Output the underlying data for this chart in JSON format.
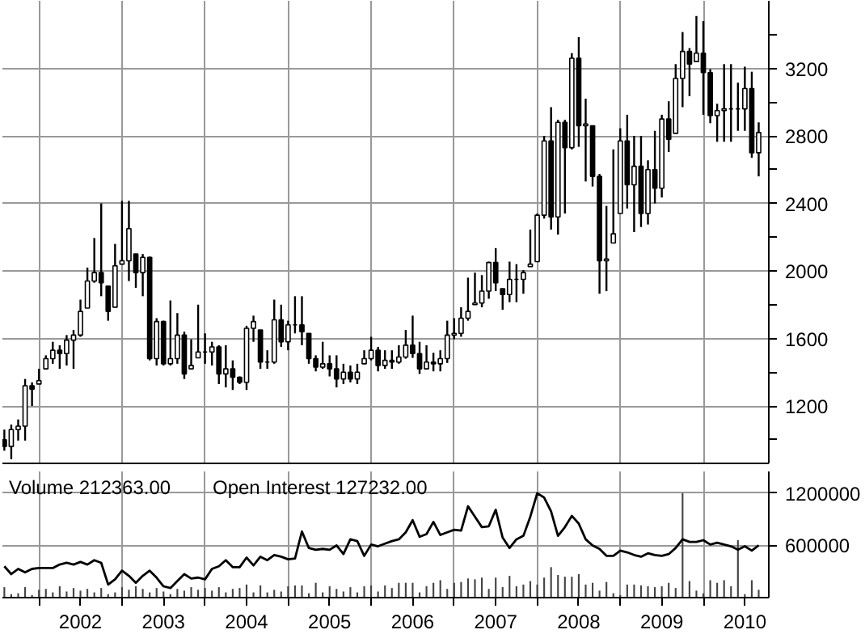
{
  "chart_data": [
    {
      "type": "candlestick",
      "color": "#000000",
      "x": [
        "2001-08",
        "2001-09",
        "2001-10",
        "2001-11",
        "2001-12",
        "2002-01",
        "2002-02",
        "2002-03",
        "2002-04",
        "2002-05",
        "2002-06",
        "2002-07",
        "2002-08",
        "2002-09",
        "2002-10",
        "2002-11",
        "2002-12",
        "2003-01",
        "2003-02",
        "2003-03",
        "2003-04",
        "2003-05",
        "2003-06",
        "2003-07",
        "2003-08",
        "2003-09",
        "2003-10",
        "2003-11",
        "2003-12",
        "2004-01",
        "2004-02",
        "2004-03",
        "2004-04",
        "2004-05",
        "2004-06",
        "2004-07",
        "2004-08",
        "2004-09",
        "2004-10",
        "2004-11",
        "2004-12",
        "2005-01",
        "2005-02",
        "2005-03",
        "2005-04",
        "2005-05",
        "2005-06",
        "2005-07",
        "2005-08",
        "2005-09",
        "2005-10",
        "2005-11",
        "2005-12",
        "2006-01",
        "2006-02",
        "2006-03",
        "2006-04",
        "2006-05",
        "2006-06",
        "2006-07",
        "2006-08",
        "2006-09",
        "2006-10",
        "2006-11",
        "2006-12",
        "2007-01",
        "2007-02",
        "2007-03",
        "2007-04",
        "2007-05",
        "2007-06",
        "2007-07",
        "2007-08",
        "2007-09",
        "2007-10",
        "2007-11",
        "2007-12",
        "2008-01",
        "2008-02",
        "2008-03",
        "2008-04",
        "2008-05",
        "2008-06",
        "2008-07",
        "2008-08",
        "2008-09",
        "2008-10",
        "2008-11",
        "2008-12",
        "2009-01",
        "2009-02",
        "2009-03",
        "2009-04",
        "2009-05",
        "2009-06",
        "2009-07",
        "2009-08",
        "2009-09",
        "2009-10",
        "2009-11",
        "2009-12",
        "2010-01",
        "2010-02",
        "2010-03",
        "2010-04",
        "2010-05",
        "2010-06",
        "2010-07",
        "2010-08",
        "2010-09"
      ],
      "ohlc": [
        [
          1000,
          1060,
          935,
          960
        ],
        [
          960,
          1090,
          885,
          1060
        ],
        [
          1060,
          1120,
          995,
          1080
        ],
        [
          1080,
          1360,
          995,
          1320
        ],
        [
          1320,
          1340,
          1200,
          1300
        ],
        [
          1330,
          1420,
          1330,
          1350
        ],
        [
          1420,
          1500,
          1420,
          1480
        ],
        [
          1480,
          1580,
          1450,
          1530
        ],
        [
          1530,
          1560,
          1420,
          1510
        ],
        [
          1510,
          1620,
          1440,
          1590
        ],
        [
          1590,
          1650,
          1420,
          1620
        ],
        [
          1620,
          1830,
          1610,
          1760
        ],
        [
          1780,
          2020,
          1780,
          1940
        ],
        [
          1940,
          2195,
          1930,
          1990
        ],
        [
          1990,
          2400,
          1850,
          1930
        ],
        [
          1910,
          1910,
          1705,
          1760
        ],
        [
          1785,
          2160,
          1785,
          2030
        ],
        [
          2040,
          2415,
          2040,
          2060
        ],
        [
          2060,
          2415,
          1940,
          2250
        ],
        [
          2100,
          2100,
          1900,
          1990
        ],
        [
          1990,
          2100,
          1850,
          2080
        ],
        [
          2080,
          2085,
          1470,
          1480
        ],
        [
          1480,
          1720,
          1440,
          1700
        ],
        [
          1700,
          1705,
          1440,
          1450
        ],
        [
          1450,
          1825,
          1440,
          1480
        ],
        [
          1480,
          1750,
          1450,
          1620
        ],
        [
          1620,
          1640,
          1360,
          1390
        ],
        [
          1420,
          1595,
          1420,
          1440
        ],
        [
          1485,
          1800,
          1485,
          1520
        ],
        [
          1520,
          1630,
          1450,
          1520
        ],
        [
          1520,
          1580,
          1440,
          1550
        ],
        [
          1550,
          1560,
          1330,
          1390
        ],
        [
          1390,
          1560,
          1310,
          1420
        ],
        [
          1420,
          1470,
          1295,
          1370
        ],
        [
          1370,
          1375,
          1330,
          1340
        ],
        [
          1340,
          1675,
          1295,
          1660
        ],
        [
          1660,
          1735,
          1580,
          1700
        ],
        [
          1650,
          1650,
          1420,
          1460
        ],
        [
          1460,
          1530,
          1420,
          1460
        ],
        [
          1460,
          1830,
          1450,
          1710
        ],
        [
          1710,
          1800,
          1550,
          1580
        ],
        [
          1580,
          1705,
          1530,
          1680
        ],
        [
          1680,
          1850,
          1630,
          1680
        ],
        [
          1680,
          1850,
          1560,
          1640
        ],
        [
          1630,
          1630,
          1450,
          1480
        ],
        [
          1480,
          1500,
          1405,
          1430
        ],
        [
          1430,
          1580,
          1420,
          1450
        ],
        [
          1450,
          1500,
          1375,
          1420
        ],
        [
          1420,
          1500,
          1310,
          1360
        ],
        [
          1360,
          1450,
          1330,
          1400
        ],
        [
          1400,
          1440,
          1340,
          1360
        ],
        [
          1360,
          1450,
          1330,
          1400
        ],
        [
          1450,
          1530,
          1450,
          1480
        ],
        [
          1480,
          1610,
          1470,
          1530
        ],
        [
          1530,
          1550,
          1405,
          1440
        ],
        [
          1440,
          1530,
          1420,
          1470
        ],
        [
          1470,
          1530,
          1420,
          1460
        ],
        [
          1460,
          1560,
          1450,
          1490
        ],
        [
          1490,
          1650,
          1480,
          1560
        ],
        [
          1560,
          1735,
          1485,
          1510
        ],
        [
          1510,
          1580,
          1390,
          1420
        ],
        [
          1420,
          1560,
          1420,
          1460
        ],
        [
          1460,
          1515,
          1405,
          1450
        ],
        [
          1450,
          1530,
          1405,
          1480
        ],
        [
          1480,
          1705,
          1455,
          1620
        ],
        [
          1620,
          1720,
          1595,
          1630
        ],
        [
          1630,
          1785,
          1610,
          1720
        ],
        [
          1720,
          1960,
          1705,
          1760
        ],
        [
          1800,
          1990,
          1800,
          1810
        ],
        [
          1810,
          1975,
          1785,
          1880
        ],
        [
          1880,
          2055,
          1835,
          2050
        ],
        [
          2050,
          2135,
          1880,
          1930
        ],
        [
          1895,
          1895,
          1770,
          1860
        ],
        [
          1860,
          2055,
          1815,
          1950
        ],
        [
          1950,
          2040,
          1815,
          1950
        ],
        [
          1950,
          2005,
          1865,
          1990
        ],
        [
          2025,
          2245,
          2025,
          2040
        ],
        [
          2055,
          2340,
          2055,
          2330
        ],
        [
          2330,
          2800,
          2310,
          2770
        ],
        [
          2770,
          2970,
          2245,
          2320
        ],
        [
          2320,
          2895,
          2215,
          2880
        ],
        [
          2880,
          2895,
          2340,
          2730
        ],
        [
          2730,
          3290,
          2720,
          3260
        ],
        [
          3260,
          3385,
          2735,
          2860
        ],
        [
          2860,
          3020,
          2530,
          2870
        ],
        [
          2860,
          2860,
          2500,
          2560
        ],
        [
          2560,
          2575,
          1865,
          2060
        ],
        [
          2060,
          2385,
          1880,
          2070
        ],
        [
          2165,
          2720,
          2165,
          2220
        ],
        [
          2340,
          2845,
          2340,
          2770
        ],
        [
          2770,
          2925,
          2370,
          2510
        ],
        [
          2510,
          2800,
          2230,
          2620
        ],
        [
          2620,
          2800,
          2260,
          2340
        ],
        [
          2340,
          2655,
          2275,
          2600
        ],
        [
          2600,
          2830,
          2400,
          2490
        ],
        [
          2490,
          2925,
          2435,
          2900
        ],
        [
          2900,
          3005,
          2705,
          2780
        ],
        [
          2815,
          3225,
          2815,
          3140
        ],
        [
          3140,
          3415,
          2970,
          3300
        ],
        [
          3300,
          3320,
          3035,
          3225
        ],
        [
          3240,
          3510,
          3240,
          3290
        ],
        [
          3290,
          3480,
          2925,
          3175
        ],
        [
          3175,
          3195,
          2875,
          2920
        ],
        [
          2920,
          2990,
          2765,
          2950
        ],
        [
          2950,
          3225,
          2765,
          2960
        ],
        [
          2960,
          3225,
          2765,
          2960
        ],
        [
          2960,
          3115,
          2830,
          2960
        ],
        [
          2960,
          3210,
          2830,
          3080
        ],
        [
          3080,
          3180,
          2670,
          2700
        ],
        [
          2700,
          2880,
          2560,
          2820
        ]
      ],
      "xlim": [
        "2001-07-23",
        "2010-10-15"
      ],
      "xticks": [
        {
          "value": "2002-01",
          "label": null
        },
        {
          "value": "2003-01",
          "label": null
        },
        {
          "value": "2004-01",
          "label": null
        },
        {
          "value": "2005-01",
          "label": null
        },
        {
          "value": "2006-01",
          "label": null
        },
        {
          "value": "2007-01",
          "label": null
        },
        {
          "value": "2008-01",
          "label": null
        },
        {
          "value": "2009-01",
          "label": null
        },
        {
          "value": "2010-01",
          "label": null
        }
      ],
      "ylim": [
        860,
        3600
      ],
      "yticks": [
        {
          "value": 1000,
          "label": null
        },
        1200,
        {
          "value": 1400,
          "label": null
        },
        1600,
        {
          "value": 1800,
          "label": null
        },
        2000,
        {
          "value": 2200,
          "label": null
        },
        2400,
        {
          "value": 2600,
          "label": null
        },
        2800,
        {
          "value": 3000,
          "label": null
        },
        3200,
        {
          "value": 3400,
          "label": null
        }
      ],
      "grid": true,
      "tick_labels": "y"
    },
    {
      "type": "bar",
      "annotations": [
        "Volume 212363.00",
        "Open Interest  127232.00"
      ],
      "x": [
        "2001-08",
        "2001-09",
        "2001-10",
        "2001-11",
        "2001-12",
        "2002-01",
        "2002-02",
        "2002-03",
        "2002-04",
        "2002-05",
        "2002-06",
        "2002-07",
        "2002-08",
        "2002-09",
        "2002-10",
        "2002-11",
        "2002-12",
        "2003-01",
        "2003-02",
        "2003-03",
        "2003-04",
        "2003-05",
        "2003-06",
        "2003-07",
        "2003-08",
        "2003-09",
        "2003-10",
        "2003-11",
        "2003-12",
        "2004-01",
        "2004-02",
        "2004-03",
        "2004-04",
        "2004-05",
        "2004-06",
        "2004-07",
        "2004-08",
        "2004-09",
        "2004-10",
        "2004-11",
        "2004-12",
        "2005-01",
        "2005-02",
        "2005-03",
        "2005-04",
        "2005-05",
        "2005-06",
        "2005-07",
        "2005-08",
        "2005-09",
        "2005-10",
        "2005-11",
        "2005-12",
        "2006-01",
        "2006-02",
        "2006-03",
        "2006-04",
        "2006-05",
        "2006-06",
        "2006-07",
        "2006-08",
        "2006-09",
        "2006-10",
        "2006-11",
        "2006-12",
        "2007-01",
        "2007-02",
        "2007-03",
        "2007-04",
        "2007-05",
        "2007-06",
        "2007-07",
        "2007-08",
        "2007-09",
        "2007-10",
        "2007-11",
        "2007-12",
        "2008-01",
        "2008-02",
        "2008-03",
        "2008-04",
        "2008-05",
        "2008-06",
        "2008-07",
        "2008-08",
        "2008-09",
        "2008-10",
        "2008-11",
        "2008-12",
        "2009-01",
        "2009-02",
        "2009-03",
        "2009-04",
        "2009-05",
        "2009-06",
        "2009-07",
        "2009-08",
        "2009-09",
        "2009-10",
        "2009-11",
        "2009-12",
        "2010-01",
        "2010-02",
        "2010-03",
        "2010-04",
        "2010-05",
        "2010-06",
        "2010-07",
        "2010-08",
        "2010-09"
      ],
      "series": [
        {
          "type": "bar",
          "color": "#444444",
          "values": [
            120000,
            40000,
            50000,
            120000,
            30000,
            90000,
            100000,
            60000,
            130000,
            70000,
            110000,
            80000,
            100000,
            60000,
            110000,
            40000,
            60000,
            120000,
            90000,
            130000,
            100000,
            60000,
            110000,
            70000,
            40000,
            100000,
            80000,
            120000,
            90000,
            110000,
            80000,
            120000,
            60000,
            100000,
            110000,
            150000,
            60000,
            140000,
            60000,
            90000,
            70000,
            130000,
            140000,
            140000,
            50000,
            170000,
            60000,
            130000,
            100000,
            70000,
            120000,
            60000,
            130000,
            140000,
            70000,
            140000,
            110000,
            170000,
            170000,
            170000,
            60000,
            130000,
            170000,
            200000,
            100000,
            170000,
            180000,
            220000,
            210000,
            230000,
            100000,
            230000,
            120000,
            250000,
            130000,
            150000,
            190000,
            150000,
            230000,
            350000,
            260000,
            240000,
            240000,
            270000,
            150000,
            170000,
            80000,
            180000,
            50000,
            30000,
            150000,
            150000,
            140000,
            130000,
            120000,
            130000,
            170000,
            110000,
            1200000,
            190000,
            80000,
            50000,
            200000,
            170000,
            200000,
            130000,
            660000,
            40000,
            200000,
            90000
          ]
        },
        {
          "type": "line",
          "color": "#000000",
          "values": [
            360000,
            270000,
            330000,
            290000,
            330000,
            340000,
            340000,
            340000,
            380000,
            400000,
            380000,
            410000,
            380000,
            430000,
            400000,
            150000,
            210000,
            310000,
            250000,
            170000,
            250000,
            310000,
            230000,
            130000,
            110000,
            190000,
            270000,
            220000,
            230000,
            210000,
            330000,
            360000,
            430000,
            350000,
            350000,
            460000,
            370000,
            470000,
            430000,
            490000,
            470000,
            440000,
            450000,
            760000,
            570000,
            550000,
            560000,
            550000,
            600000,
            500000,
            670000,
            650000,
            480000,
            610000,
            590000,
            620000,
            650000,
            670000,
            750000,
            890000,
            700000,
            730000,
            870000,
            720000,
            750000,
            780000,
            770000,
            1050000,
            930000,
            810000,
            820000,
            1010000,
            690000,
            570000,
            670000,
            710000,
            930000,
            1200000,
            1150000,
            990000,
            710000,
            810000,
            940000,
            850000,
            670000,
            600000,
            560000,
            480000,
            480000,
            540000,
            520000,
            490000,
            470000,
            510000,
            490000,
            480000,
            500000,
            570000,
            670000,
            640000,
            640000,
            660000,
            610000,
            630000,
            610000,
            590000,
            550000,
            590000,
            540000,
            600000
          ]
        }
      ],
      "xlim": [
        "2001-07-23",
        "2010-10-15"
      ],
      "xticks": [
        {
          "value": "2002-01",
          "label": null
        },
        {
          "value": "2002-07",
          "label": "2002"
        },
        {
          "value": "2003-01",
          "label": null
        },
        {
          "value": "2003-07",
          "label": "2003"
        },
        {
          "value": "2004-01",
          "label": null
        },
        {
          "value": "2004-07",
          "label": "2004"
        },
        {
          "value": "2005-01",
          "label": null
        },
        {
          "value": "2005-07",
          "label": "2005"
        },
        {
          "value": "2006-01",
          "label": null
        },
        {
          "value": "2006-07",
          "label": "2006"
        },
        {
          "value": "2007-01",
          "label": null
        },
        {
          "value": "2007-07",
          "label": "2007"
        },
        {
          "value": "2008-01",
          "label": null
        },
        {
          "value": "2008-07",
          "label": "2008"
        },
        {
          "value": "2009-01",
          "label": null
        },
        {
          "value": "2009-07",
          "label": "2009"
        },
        {
          "value": "2010-01",
          "label": null
        },
        {
          "value": "2010-07",
          "label": "2010"
        }
      ],
      "ylim": [
        0,
        1450000
      ],
      "yticks": [
        600000,
        1200000
      ],
      "grid": true
    }
  ]
}
